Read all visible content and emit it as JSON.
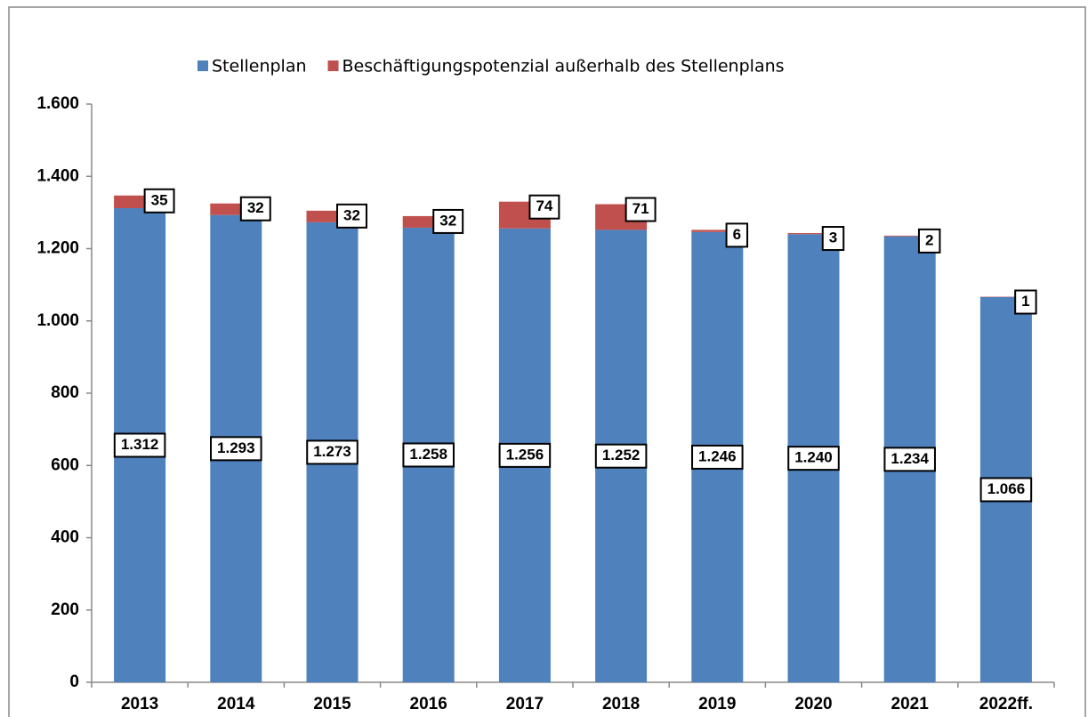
{
  "chart_data": {
    "type": "stacked_bar",
    "categories": [
      "2013",
      "2014",
      "2015",
      "2016",
      "2017",
      "2018",
      "2019",
      "2020",
      "2021",
      "2022ff."
    ],
    "series": [
      {
        "name": "Stellenplan",
        "color": "#4f81bd",
        "values": [
          1312,
          1293,
          1273,
          1258,
          1256,
          1252,
          1246,
          1240,
          1234,
          1066
        ],
        "value_labels": [
          "1.312",
          "1.293",
          "1.273",
          "1.258",
          "1.256",
          "1.252",
          "1.246",
          "1.240",
          "1.234",
          "1.066"
        ]
      },
      {
        "name": "Beschäftigungspotenzial außerhalb des Stellenplans",
        "color": "#c0504d",
        "values": [
          35,
          32,
          32,
          32,
          74,
          71,
          6,
          3,
          2,
          1
        ]
      }
    ],
    "ylim": [
      0,
      1600
    ],
    "yticks": [
      0,
      200,
      400,
      600,
      800,
      {
        "value": 1000,
        "label": "1.000"
      },
      {
        "value": 1200,
        "label": "1.200"
      },
      {
        "value": 1400,
        "label": "1.400"
      },
      {
        "value": 1600,
        "label": "1.600"
      }
    ],
    "legend": "top"
  }
}
